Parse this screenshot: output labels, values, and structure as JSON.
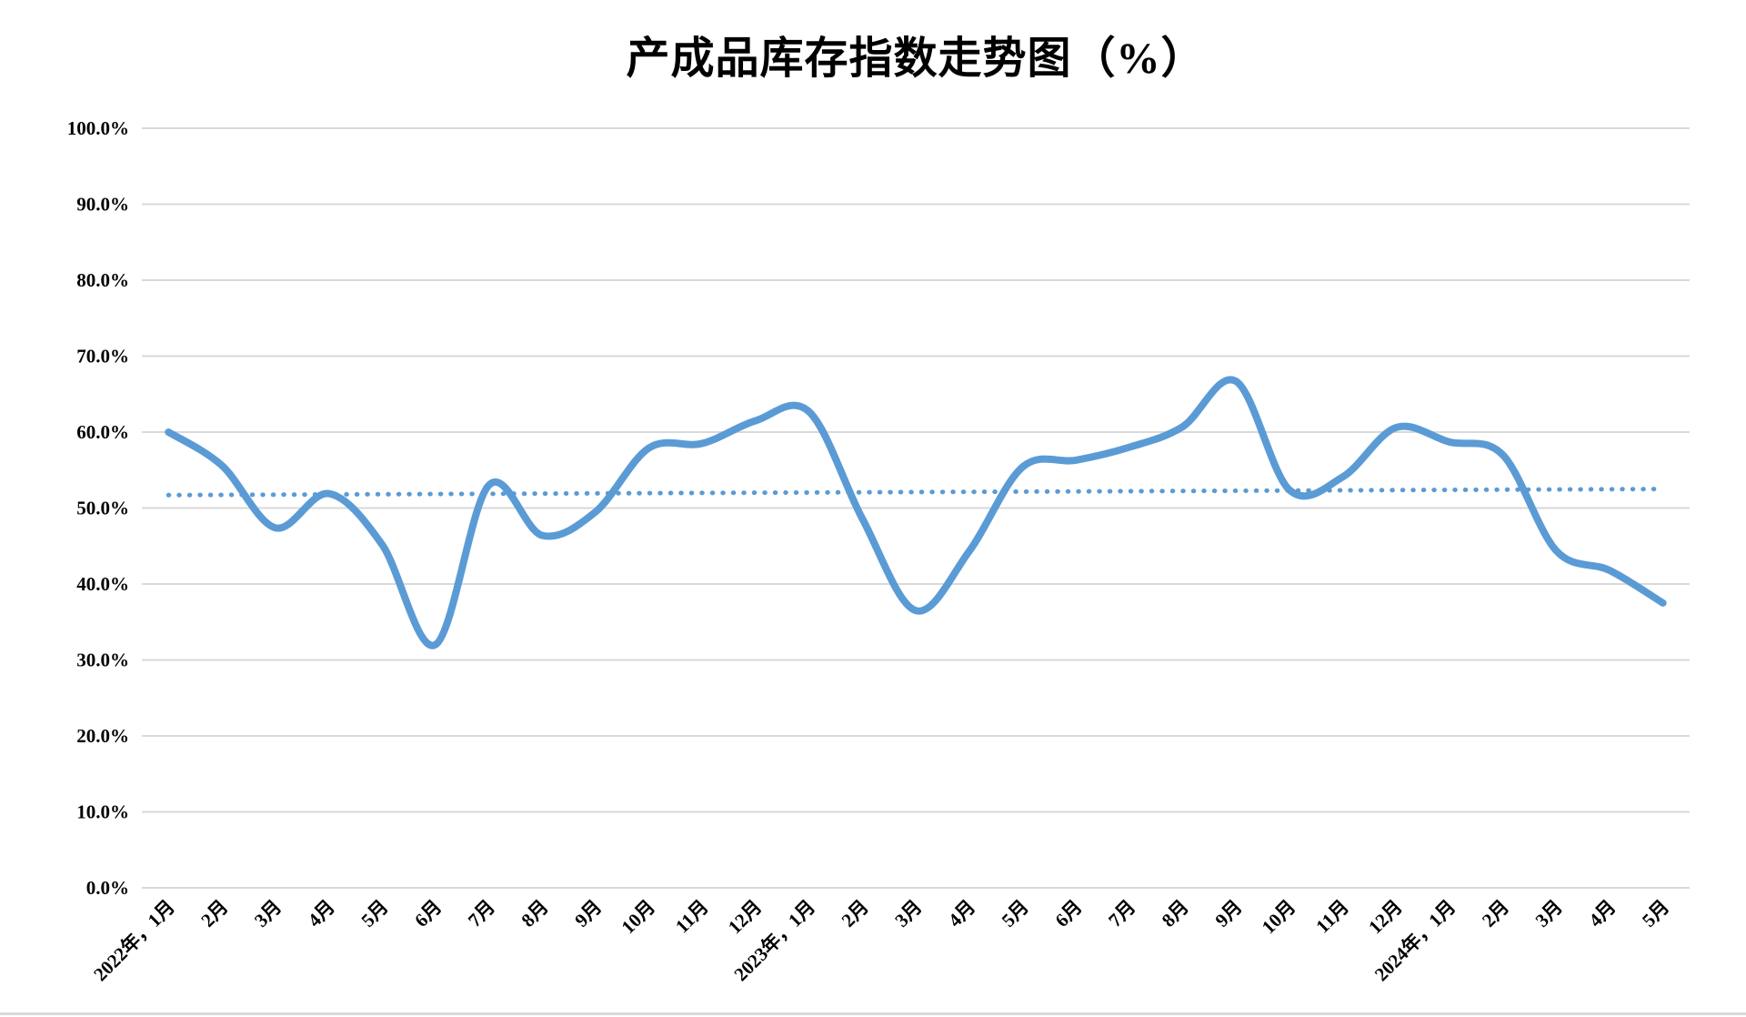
{
  "page": {
    "background_color": "#ffffff",
    "bottom_border_color": "#d9d9d9"
  },
  "chart_data": {
    "type": "line",
    "title": "产成品库存指数走势图（%）",
    "categories": [
      "2022年，1月",
      "2月",
      "3月",
      "4月",
      "5月",
      "6月",
      "7月",
      "8月",
      "9月",
      "10月",
      "11月",
      "12月",
      "2023年，1月",
      "2月",
      "3月",
      "4月",
      "5月",
      "6月",
      "7月",
      "8月",
      "9月",
      "10月",
      "11月",
      "12月",
      "2024年，1月",
      "2月",
      "3月",
      "4月",
      "5月"
    ],
    "values": [
      60.0,
      55.6,
      47.4,
      51.9,
      45.2,
      32.0,
      53.0,
      46.4,
      49.5,
      57.9,
      58.5,
      61.5,
      62.7,
      48.6,
      36.5,
      44.3,
      55.4,
      56.3,
      58.0,
      60.7,
      66.7,
      52.4,
      54.1,
      60.6,
      58.7,
      57.0,
      44.4,
      41.8,
      37.5
    ],
    "trendline": {
      "style": "dotted",
      "start_value": 51.7,
      "end_value": 52.5
    },
    "xlabel": "",
    "ylabel": "",
    "ylim": [
      0,
      100
    ],
    "y_tick_step": 10,
    "y_tick_labels": [
      "0.0%",
      "10.0%",
      "20.0%",
      "30.0%",
      "40.0%",
      "50.0%",
      "60.0%",
      "70.0%",
      "80.0%",
      "90.0%",
      "100.0%"
    ],
    "grid": true,
    "legend": "none",
    "line_smoothing": true,
    "colors": {
      "series_line": "#5b9bd5",
      "trend_line": "#5b9bd5",
      "gridline": "#d9d9d9",
      "labels": "#000000"
    }
  }
}
